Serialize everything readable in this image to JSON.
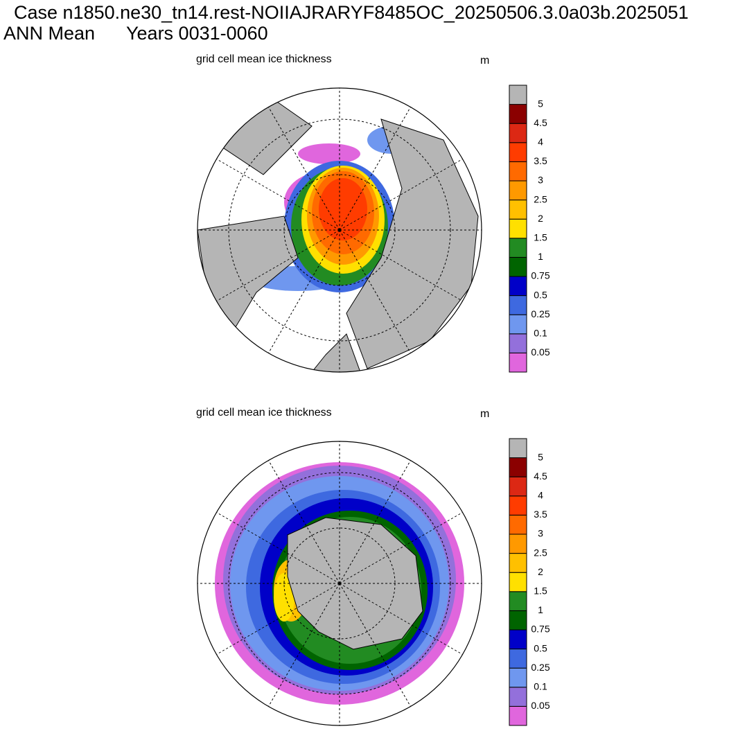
{
  "header": {
    "case": "Case n1850.ne30_tn14.rest-NOIIAJRARYF8485OC_20250506.3.0a03b.2025051",
    "season": "ANN Mean",
    "years": "Years 0031-0060"
  },
  "panels": [
    {
      "title": "grid cell mean ice thickness",
      "units": "m",
      "hemisphere": "north"
    },
    {
      "title": "grid cell mean ice thickness",
      "units": "m",
      "hemisphere": "south"
    }
  ],
  "colorbar": {
    "levels": [
      0.05,
      0.1,
      0.25,
      0.5,
      0.75,
      1,
      1.5,
      2,
      2.5,
      3,
      3.5,
      4,
      4.5,
      5
    ],
    "colors": [
      "#e066dd",
      "#9370db",
      "#6f97ef",
      "#3e69e0",
      "#0000c8",
      "#006400",
      "#228b22",
      "#ffe000",
      "#ffc000",
      "#ff9900",
      "#ff6a00",
      "#ff3c00",
      "#dc2814",
      "#8b0000",
      "#b5b5b5"
    ]
  }
}
